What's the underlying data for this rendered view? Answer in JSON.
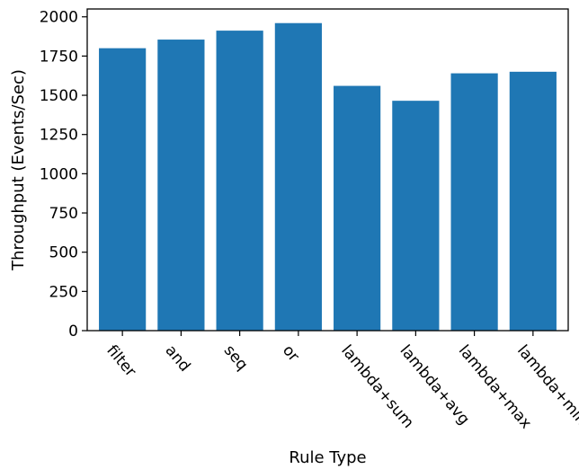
{
  "chart_data": {
    "type": "bar",
    "title": "",
    "xlabel": "Rule Type",
    "ylabel": "Throughput (Events/Sec)",
    "categories": [
      "filter",
      "and",
      "seq",
      "or",
      "lambda+sum",
      "lambda+avg",
      "lambda+max",
      "lambda+min"
    ],
    "values": [
      1800,
      1855,
      1912,
      1960,
      1560,
      1465,
      1640,
      1650
    ],
    "ylim": [
      0,
      2050
    ],
    "yticks": [
      0,
      250,
      500,
      750,
      1000,
      1250,
      1500,
      1750,
      2000
    ],
    "grid": false,
    "bar_color": "#1f77b4",
    "x_tick_rotation_deg": 50
  }
}
